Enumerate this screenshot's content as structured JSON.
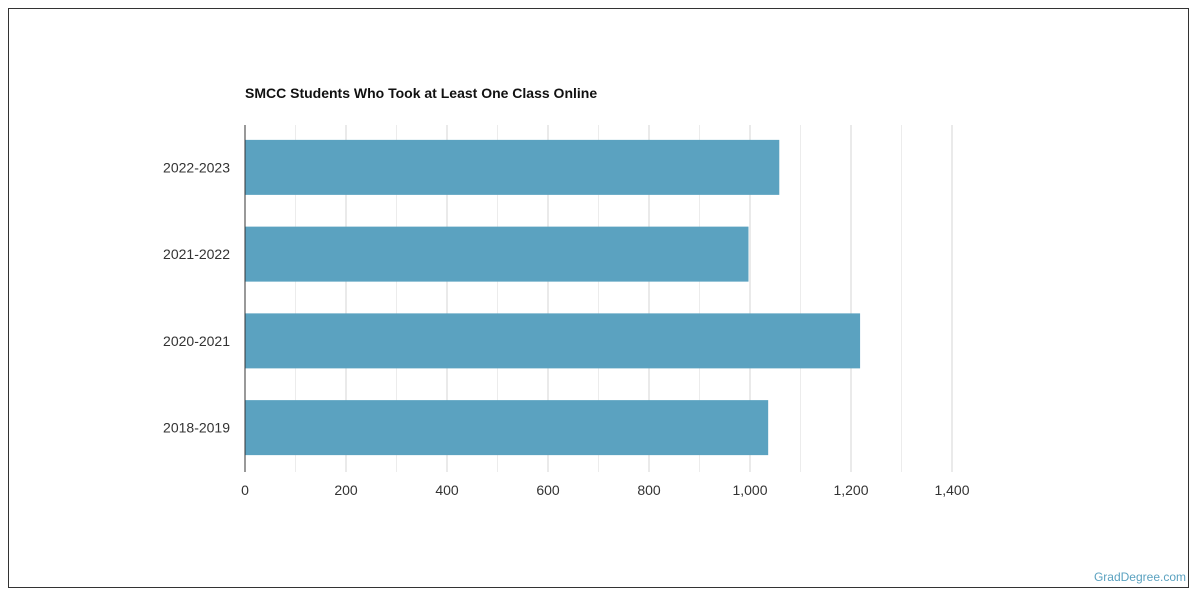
{
  "chart_data": {
    "type": "bar",
    "orientation": "horizontal",
    "title": "SMCC Students Who Took at Least One Class Online",
    "categories": [
      "2022-2023",
      "2021-2022",
      "2020-2021",
      "2018-2019"
    ],
    "values": [
      1058,
      997,
      1218,
      1036
    ],
    "xlim": [
      0,
      1400
    ],
    "xticks": [
      0,
      200,
      400,
      600,
      800,
      1000,
      1200,
      1400
    ],
    "xtick_labels": [
      "0",
      "200",
      "400",
      "600",
      "800",
      "1,000",
      "1,200",
      "1,400"
    ],
    "minor_grid_step": 100,
    "grid": true,
    "bar_color": "#5ba2c0",
    "grid_color": "#dddddd"
  },
  "watermark": "GradDegree.com"
}
